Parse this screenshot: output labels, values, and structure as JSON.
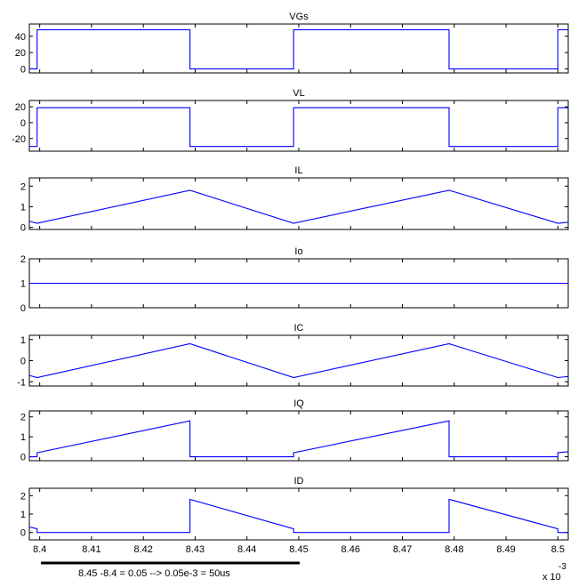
{
  "chart_data": [
    {
      "type": "line",
      "title": "VGs",
      "xlim": [
        0.008398,
        0.008502
      ],
      "ylim": [
        -5,
        55
      ],
      "yticks": [
        0,
        20,
        40
      ],
      "color": "#0000ff",
      "series": [
        {
          "x": [
            0.008398,
            0.0083995,
            0.0083995,
            0.008429,
            0.008429,
            0.008449,
            0.008449,
            0.008479,
            0.008479,
            0.0085,
            0.0085,
            0.008502
          ],
          "y": [
            0,
            0,
            48,
            48,
            0,
            0,
            48,
            48,
            0,
            0,
            48,
            48
          ]
        }
      ]
    },
    {
      "type": "line",
      "title": "VL",
      "xlim": [
        0.008398,
        0.008502
      ],
      "ylim": [
        -36,
        28
      ],
      "yticks": [
        -20,
        0,
        20
      ],
      "color": "#0000ff",
      "series": [
        {
          "x": [
            0.008398,
            0.0083995,
            0.0083995,
            0.008429,
            0.008429,
            0.008449,
            0.008449,
            0.008479,
            0.008479,
            0.0085,
            0.0085,
            0.008502
          ],
          "y": [
            -30,
            -30,
            19,
            19,
            -30,
            -30,
            19,
            19,
            -30,
            -30,
            19,
            19
          ]
        }
      ]
    },
    {
      "type": "line",
      "title": "IL",
      "xlim": [
        0.008398,
        0.008502
      ],
      "ylim": [
        -0.1,
        2.4
      ],
      "yticks": [
        0,
        1,
        2
      ],
      "color": "#0000ff",
      "series": [
        {
          "x": [
            0.008398,
            0.0083995,
            0.008429,
            0.008449,
            0.008479,
            0.0085,
            0.008502
          ],
          "y": [
            0.3,
            0.2,
            1.8,
            0.2,
            1.8,
            0.2,
            0.25
          ]
        }
      ]
    },
    {
      "type": "line",
      "title": "Io",
      "xlim": [
        0.008398,
        0.008502
      ],
      "ylim": [
        0,
        2
      ],
      "yticks": [
        0,
        1,
        2
      ],
      "color": "#0000ff",
      "series": [
        {
          "x": [
            0.008398,
            0.008502
          ],
          "y": [
            1,
            1
          ]
        }
      ]
    },
    {
      "type": "line",
      "title": "IC",
      "xlim": [
        0.008398,
        0.008502
      ],
      "ylim": [
        -1.2,
        1.2
      ],
      "yticks": [
        -1,
        0,
        1
      ],
      "color": "#0000ff",
      "series": [
        {
          "x": [
            0.008398,
            0.0083995,
            0.008429,
            0.008449,
            0.008479,
            0.0085,
            0.008502
          ],
          "y": [
            -0.7,
            -0.8,
            0.8,
            -0.8,
            0.8,
            -0.8,
            -0.75
          ]
        }
      ]
    },
    {
      "type": "line",
      "title": "IQ",
      "xlim": [
        0.008398,
        0.008502
      ],
      "ylim": [
        -0.2,
        2.3
      ],
      "yticks": [
        0,
        1,
        2
      ],
      "color": "#0000ff",
      "series": [
        {
          "x": [
            0.008398,
            0.0083995,
            0.0083995,
            0.008429,
            0.008429,
            0.008449,
            0.008449,
            0.008479,
            0.008479,
            0.0085,
            0.0085,
            0.008502
          ],
          "y": [
            0,
            0,
            0.2,
            1.8,
            0,
            0,
            0.2,
            1.8,
            0,
            0,
            0.2,
            0.25
          ]
        }
      ]
    },
    {
      "type": "line",
      "title": "ID",
      "xlim": [
        0.008398,
        0.008502
      ],
      "ylim": [
        -0.4,
        2.4
      ],
      "yticks": [
        0,
        1,
        2
      ],
      "color": "#0000ff",
      "series": [
        {
          "x": [
            0.008398,
            0.0083995,
            0.0083995,
            0.008429,
            0.008429,
            0.008449,
            0.008449,
            0.008479,
            0.008479,
            0.0085,
            0.0085,
            0.008502
          ],
          "y": [
            0.3,
            0.2,
            0,
            0,
            1.8,
            0.2,
            0,
            0,
            1.8,
            0.2,
            0,
            0
          ]
        }
      ]
    }
  ],
  "x_axis": {
    "ticks": [
      0.0084,
      0.00841,
      0.00842,
      0.00843,
      0.00844,
      0.00845,
      0.00846,
      0.00847,
      0.00848,
      0.00849,
      0.0085
    ],
    "tick_labels": [
      "8.4",
      "8.41",
      "8.42",
      "8.43",
      "8.44",
      "8.45",
      "8.46",
      "8.47",
      "8.48",
      "8.49",
      "8.5"
    ],
    "multiplier": "x 10",
    "exponent": "-3"
  },
  "annotation": {
    "text": "8.45 -8.4 = 0.05 --> 0.05e-3 = 50us"
  }
}
